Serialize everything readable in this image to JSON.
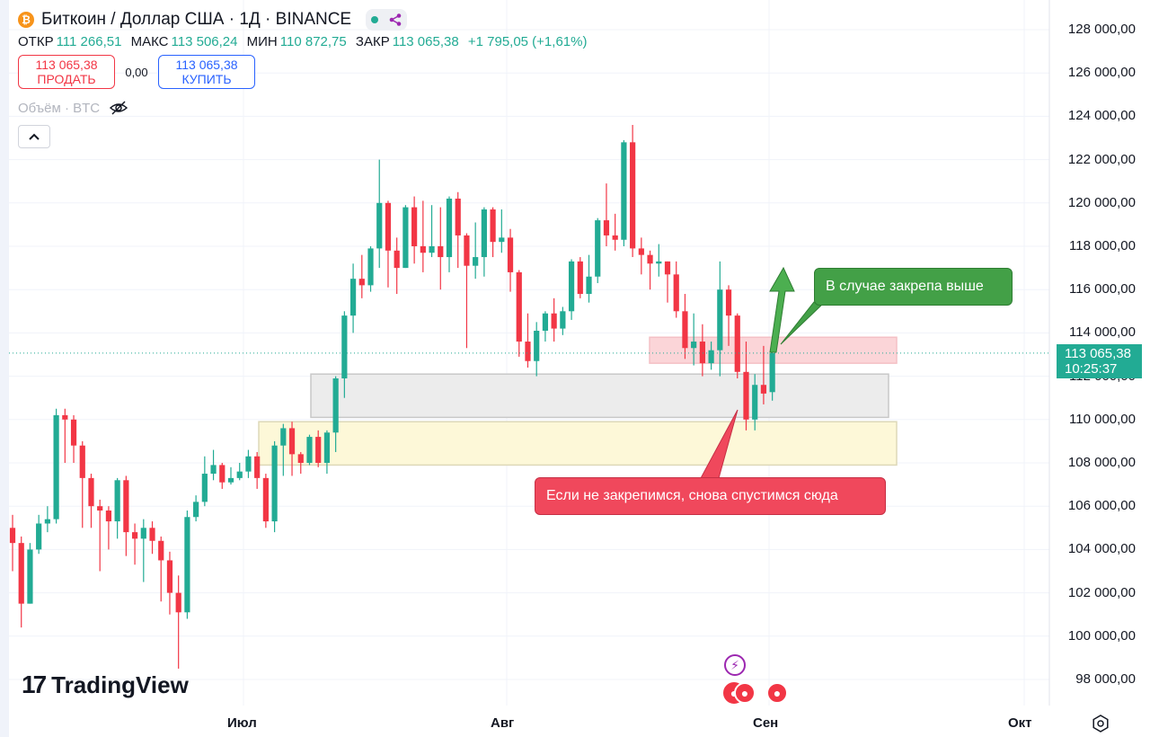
{
  "header": {
    "title": "Биткоин / Доллар США · 1Д · BINANCE",
    "icon": "bitcoin-icon",
    "ohlc": {
      "open_label": "ОТКР",
      "open_value": "111 266,51",
      "high_label": "МАКС",
      "high_value": "113 506,24",
      "low_label": "МИН",
      "low_value": "110 872,75",
      "close_label": "ЗАКР",
      "close_value": "113 065,38",
      "change": "+1 795,05 (+1,61%)"
    },
    "sell": {
      "price": "113 065,38",
      "label": "ПРОДАТЬ"
    },
    "spread": "0,00",
    "buy": {
      "price": "113 065,38",
      "label": "КУПИТЬ"
    },
    "volume_label": "Объём · BTC"
  },
  "price_axis": [
    "128 000,00",
    "126 000,00",
    "124 000,00",
    "122 000,00",
    "120 000,00",
    "118 000,00",
    "116 000,00",
    "114 000,00",
    "112 000,00",
    "110 000,00",
    "108 000,00",
    "106 000,00",
    "104 000,00",
    "102 000,00",
    "100 000,00",
    "98 000,00"
  ],
  "time_axis": [
    "Июл",
    "Авг",
    "Сен",
    "Окт"
  ],
  "current_price": {
    "price": "113 065,38",
    "countdown": "10:25:37"
  },
  "annotations": {
    "up": "В случае закрепа выше",
    "down": "Если не закрепимся, снова спустимся сюда"
  },
  "brand": "TradingView",
  "colors": {
    "up": "#22ab94",
    "down": "#f23645",
    "accent": "#2962ff",
    "callout_green": "#43a047",
    "callout_red": "#f0485c"
  },
  "chart_data": {
    "type": "candlestick",
    "symbol": "BTCUSD",
    "ylim": [
      97000,
      129000
    ],
    "grid": true,
    "candles": [
      [
        105000,
        104300,
        105600,
        103000
      ],
      [
        104300,
        101500,
        104600,
        100400
      ],
      [
        101500,
        104000,
        104300,
        101500
      ],
      [
        104000,
        105200,
        105600,
        103800
      ],
      [
        105200,
        105400,
        106000,
        104800
      ],
      [
        105400,
        110200,
        110500,
        105200
      ],
      [
        110200,
        110000,
        110500,
        108000
      ],
      [
        110000,
        108800,
        110200,
        108000
      ],
      [
        108800,
        107300,
        109000,
        105000
      ],
      [
        107300,
        106000,
        107500,
        105000
      ],
      [
        106000,
        105800,
        106300,
        103000
      ],
      [
        105800,
        105300,
        106000,
        104000
      ],
      [
        105300,
        107200,
        107300,
        104500
      ],
      [
        107200,
        104800,
        107400,
        103700
      ],
      [
        104800,
        104500,
        105200,
        103300
      ],
      [
        104500,
        105000,
        105400,
        102500
      ],
      [
        105000,
        104400,
        105300,
        103800
      ],
      [
        104400,
        103500,
        104600,
        101600
      ],
      [
        103500,
        102000,
        103900,
        101000
      ],
      [
        102000,
        101100,
        102800,
        98500
      ],
      [
        101100,
        105500,
        105800,
        100800
      ],
      [
        105500,
        106200,
        106500,
        105300
      ],
      [
        106200,
        107500,
        108300,
        106000
      ],
      [
        107500,
        107900,
        108600,
        107200
      ],
      [
        107900,
        107100,
        108000,
        106800
      ],
      [
        107100,
        107300,
        107800,
        107000
      ],
      [
        107300,
        107600,
        108000,
        107200
      ],
      [
        107600,
        108300,
        108600,
        107300
      ],
      [
        108300,
        107300,
        108500,
        106800
      ],
      [
        107300,
        105300,
        107500,
        105000
      ],
      [
        105300,
        108800,
        109000,
        104800
      ],
      [
        108800,
        109600,
        109800,
        107400
      ],
      [
        109600,
        108400,
        109900,
        107400
      ],
      [
        108400,
        108000,
        108500,
        107500
      ],
      [
        108000,
        109200,
        109300,
        107900
      ],
      [
        109200,
        108000,
        109500,
        107800
      ],
      [
        108000,
        109400,
        109500,
        107500
      ],
      [
        109400,
        111900,
        112000,
        108500
      ],
      [
        111900,
        114800,
        115000,
        111000
      ],
      [
        114800,
        116500,
        117200,
        114000
      ],
      [
        116500,
        116200,
        117600,
        115600
      ],
      [
        116200,
        117900,
        118000,
        115900
      ],
      [
        117900,
        120000,
        122000,
        117000
      ],
      [
        120000,
        117800,
        120100,
        116100
      ],
      [
        117800,
        117000,
        118400,
        115800
      ],
      [
        117000,
        119800,
        119900,
        117000
      ],
      [
        119800,
        118000,
        120300,
        117200
      ],
      [
        118000,
        117700,
        120100,
        116800
      ],
      [
        117700,
        118000,
        119900,
        117500
      ],
      [
        118000,
        117500,
        119800,
        116000
      ],
      [
        117500,
        120200,
        120300,
        116800
      ],
      [
        120200,
        118500,
        120500,
        117000
      ],
      [
        118500,
        117100,
        118600,
        113300
      ],
      [
        117100,
        117500,
        119100,
        116500
      ],
      [
        117500,
        119700,
        119800,
        116600
      ],
      [
        119700,
        118200,
        119800,
        117500
      ],
      [
        118200,
        118400,
        119700,
        117700
      ],
      [
        118400,
        116800,
        118800,
        115900
      ],
      [
        116800,
        113600,
        116900,
        112900
      ],
      [
        113600,
        112700,
        114900,
        112400
      ],
      [
        112700,
        114100,
        114500,
        112000
      ],
      [
        114100,
        114900,
        115000,
        113600
      ],
      [
        114900,
        114200,
        115600,
        113600
      ],
      [
        114200,
        115000,
        115200,
        113900
      ],
      [
        115000,
        117300,
        117400,
        114600
      ],
      [
        117300,
        115800,
        117500,
        115600
      ],
      [
        115800,
        116600,
        117600,
        115400
      ],
      [
        116600,
        119200,
        119300,
        116300
      ],
      [
        119200,
        118500,
        120900,
        118000
      ],
      [
        118500,
        118300,
        119500,
        117800
      ],
      [
        118300,
        122800,
        122900,
        118000
      ],
      [
        122800,
        117900,
        123600,
        117500
      ],
      [
        117900,
        117600,
        118400,
        116700
      ],
      [
        117600,
        117200,
        117800,
        116000
      ],
      [
        117200,
        117300,
        118100,
        116600
      ],
      [
        117300,
        116700,
        117300,
        115400
      ],
      [
        116700,
        115000,
        117300,
        114700
      ],
      [
        115000,
        113300,
        115800,
        112800
      ],
      [
        113300,
        113600,
        114900,
        112500
      ],
      [
        113600,
        112600,
        114400,
        112000
      ],
      [
        112600,
        113200,
        113600,
        112300
      ],
      [
        113200,
        116000,
        117300,
        112000
      ],
      [
        116000,
        114800,
        116200,
        113400
      ],
      [
        114800,
        112200,
        114900,
        111900
      ],
      [
        112200,
        110000,
        113600,
        109500
      ],
      [
        110000,
        111600,
        112100,
        109500
      ],
      [
        111600,
        111200,
        113400,
        110700
      ],
      [
        111266,
        113065,
        113506,
        110872
      ]
    ]
  }
}
